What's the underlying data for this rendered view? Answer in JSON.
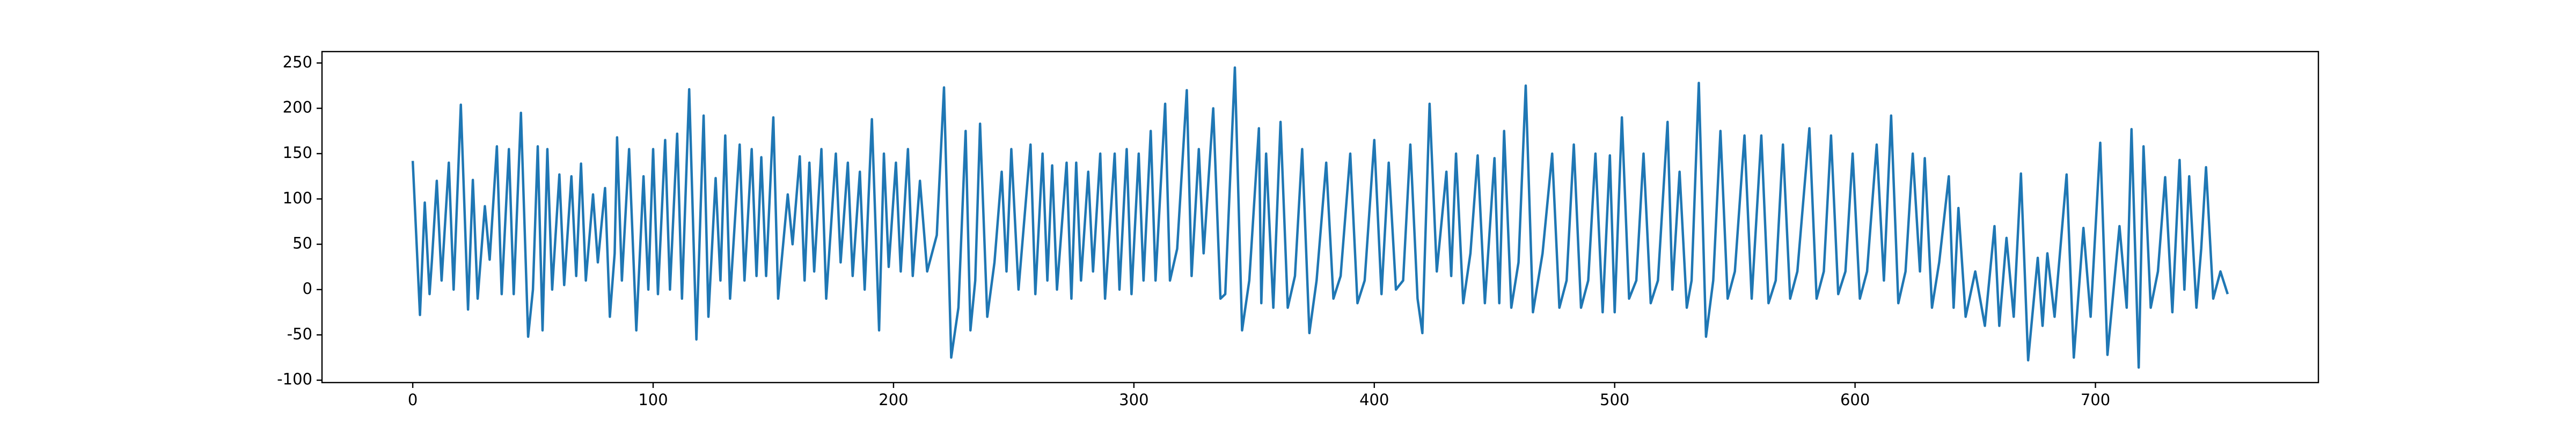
{
  "chart_data": {
    "type": "line",
    "x": [
      0,
      3,
      5,
      7,
      8,
      10,
      12,
      15,
      17,
      20,
      23,
      25,
      27,
      30,
      32,
      35,
      37,
      40,
      42,
      45,
      48,
      50,
      52,
      54,
      56,
      58,
      61,
      63,
      66,
      68,
      70,
      72,
      75,
      77,
      80,
      82,
      84,
      85,
      87,
      90,
      93,
      96,
      98,
      100,
      102,
      105,
      107,
      110,
      112,
      115,
      118,
      121,
      123,
      126,
      128,
      130,
      132,
      136,
      138,
      141,
      143,
      145,
      147,
      150,
      152,
      156,
      158,
      161,
      163,
      165,
      167,
      170,
      172,
      176,
      178,
      181,
      183,
      186,
      188,
      191,
      194,
      196,
      198,
      201,
      203,
      206,
      208,
      211,
      214,
      218,
      221,
      224,
      227,
      230,
      232,
      234,
      236,
      239,
      242,
      245,
      247,
      249,
      252,
      257,
      259,
      262,
      264,
      266,
      268,
      272,
      274,
      276,
      278,
      281,
      283,
      286,
      288,
      292,
      294,
      297,
      299,
      302,
      304,
      307,
      309,
      313,
      315,
      318,
      322,
      324,
      327,
      329,
      333,
      336,
      338,
      342,
      345,
      348,
      352,
      353,
      355,
      358,
      361,
      364,
      367,
      370,
      373,
      376,
      380,
      383,
      386,
      390,
      393,
      396,
      400,
      403,
      406,
      409,
      412,
      415,
      418,
      420,
      423,
      426,
      430,
      432,
      434,
      437,
      440,
      443,
      446,
      450,
      452,
      454,
      457,
      460,
      463,
      466,
      470,
      474,
      477,
      480,
      483,
      486,
      489,
      492,
      495,
      498,
      500,
      503,
      506,
      509,
      512,
      515,
      518,
      522,
      524,
      527,
      530,
      532,
      535,
      538,
      541,
      544,
      547,
      550,
      554,
      557,
      561,
      564,
      567,
      570,
      573,
      576,
      581,
      584,
      587,
      590,
      593,
      596,
      599,
      602,
      605,
      609,
      612,
      615,
      618,
      621,
      624,
      627,
      629,
      632,
      635,
      639,
      641,
      643,
      646,
      650,
      654,
      658,
      660,
      663,
      666,
      669,
      672,
      676,
      678,
      680,
      683,
      688,
      691,
      695,
      698,
      702,
      705,
      710,
      713,
      715,
      718,
      720,
      723,
      726,
      729,
      732,
      735,
      737,
      739,
      742,
      744,
      746,
      749,
      752,
      755
    ],
    "series": [
      {
        "color": "#1f77b4",
        "values": [
          142,
          -28,
          96,
          -5,
          33,
          120,
          10,
          140,
          0,
          204,
          -22,
          121,
          -10,
          92,
          33,
          158,
          -5,
          155,
          -5,
          195,
          -52,
          0,
          158,
          -45,
          155,
          0,
          127,
          5,
          125,
          15,
          139,
          10,
          105,
          30,
          112,
          -30,
          40,
          168,
          10,
          155,
          -45,
          125,
          0,
          155,
          -5,
          165,
          0,
          172,
          -10,
          221,
          -55,
          192,
          -30,
          123,
          10,
          170,
          -10,
          160,
          10,
          155,
          15,
          146,
          15,
          190,
          -10,
          105,
          50,
          147,
          10,
          140,
          20,
          155,
          -10,
          150,
          30,
          140,
          15,
          130,
          0,
          188,
          -45,
          150,
          25,
          140,
          20,
          155,
          15,
          120,
          20,
          60,
          223,
          -75,
          -20,
          175,
          -45,
          10,
          183,
          -30,
          30,
          130,
          20,
          155,
          0,
          160,
          -5,
          150,
          10,
          137,
          0,
          140,
          -10,
          140,
          10,
          130,
          20,
          150,
          -10,
          150,
          0,
          155,
          -5,
          150,
          10,
          175,
          10,
          205,
          10,
          45,
          220,
          15,
          155,
          40,
          200,
          -10,
          -5,
          245,
          -45,
          10,
          178,
          -15,
          150,
          -20,
          185,
          -20,
          15,
          155,
          -48,
          10,
          140,
          -10,
          15,
          150,
          -15,
          10,
          165,
          -5,
          140,
          0,
          10,
          160,
          -10,
          -48,
          205,
          20,
          130,
          15,
          150,
          -15,
          40,
          148,
          -15,
          145,
          -15,
          175,
          -20,
          30,
          225,
          -25,
          40,
          150,
          -20,
          10,
          160,
          -20,
          10,
          150,
          -25,
          148,
          -25,
          190,
          -10,
          10,
          150,
          -15,
          10,
          185,
          0,
          130,
          -20,
          10,
          228,
          -52,
          10,
          175,
          -10,
          20,
          170,
          -10,
          170,
          -15,
          10,
          160,
          -10,
          20,
          178,
          -10,
          20,
          170,
          -5,
          20,
          150,
          -10,
          20,
          160,
          10,
          192,
          -15,
          20,
          150,
          20,
          145,
          -20,
          30,
          125,
          -20,
          90,
          -30,
          20,
          -40,
          70,
          -40,
          57,
          -30,
          128,
          -78,
          35,
          -40,
          40,
          -30,
          127,
          -75,
          68,
          -30,
          162,
          -72,
          70,
          -20,
          177,
          -86,
          158,
          -20,
          20,
          124,
          -25,
          143,
          0,
          125,
          -20,
          45,
          135,
          -10,
          20,
          -5
        ]
      }
    ],
    "xlim": [
      -37.75,
      792.75
    ],
    "xticks": [
      0,
      100,
      200,
      300,
      400,
      500,
      600,
      700
    ],
    "ylim": [
      -102.6,
      262.6
    ],
    "yticks": [
      -100,
      -50,
      0,
      50,
      100,
      150,
      200,
      250
    ]
  }
}
